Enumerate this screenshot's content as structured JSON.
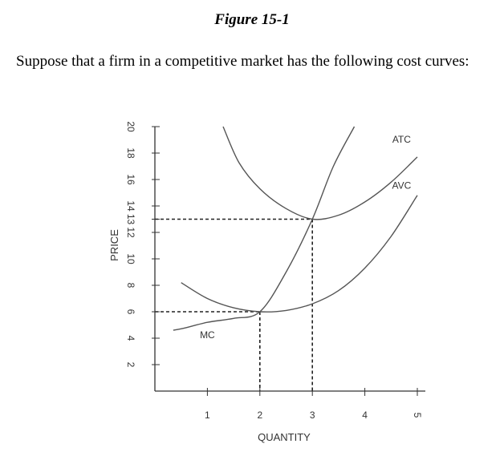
{
  "figure_title": "Figure 15-1",
  "intro_text": "Suppose that a firm in a competitive market has the following cost curves:",
  "chart_data": {
    "type": "line",
    "title": "",
    "xlabel": "QUANTITY",
    "ylabel": "PRICE",
    "xlim": [
      0,
      5
    ],
    "ylim": [
      0,
      20
    ],
    "x_ticks": [
      "1",
      "2",
      "3",
      "4",
      "5"
    ],
    "y_ticks": [
      "2",
      "4",
      "6",
      "8",
      "10",
      "12",
      "13",
      "14",
      "16",
      "18",
      "20"
    ],
    "grid": false,
    "series": [
      {
        "name": "MC",
        "label_at": [
          1,
          4
        ],
        "x": [
          0.35,
          0.6,
          1.0,
          1.5,
          2.0,
          2.5,
          3.0,
          3.4,
          3.8
        ],
        "y": [
          4.6,
          4.8,
          5.2,
          5.5,
          6.0,
          9.0,
          13.0,
          17.0,
          20.0
        ]
      },
      {
        "name": "ATC",
        "label_at": [
          4.7,
          18.8
        ],
        "x": [
          1.3,
          1.6,
          2.0,
          2.5,
          3.0,
          3.5,
          4.0,
          4.5,
          5.0
        ],
        "y": [
          20.0,
          17.3,
          15.3,
          13.8,
          13.0,
          13.3,
          14.3,
          15.8,
          17.7
        ]
      },
      {
        "name": "AVC",
        "label_at": [
          4.7,
          15.3
        ],
        "x": [
          0.5,
          1.0,
          1.5,
          2.0,
          2.5,
          3.0,
          3.5,
          4.0,
          4.5,
          5.0
        ],
        "y": [
          8.2,
          7.0,
          6.3,
          6.0,
          6.1,
          6.6,
          7.6,
          9.3,
          11.7,
          14.8
        ]
      }
    ],
    "reference_lines": [
      {
        "x": 2,
        "y": 6
      },
      {
        "x": 3,
        "y": 13
      }
    ]
  }
}
